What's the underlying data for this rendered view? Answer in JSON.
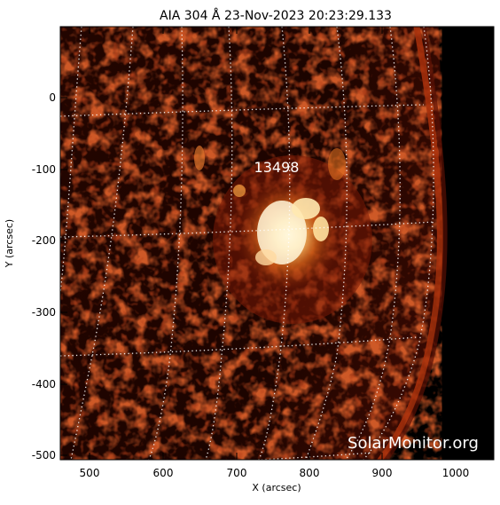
{
  "title": "AIA 304 Å 23-Nov-2023 20:23:29.133",
  "x_axis": {
    "label": "X (arcsec)",
    "ticks": [
      "500",
      "600",
      "700",
      "800",
      "900",
      "1000"
    ],
    "range": [
      450,
      1050
    ]
  },
  "y_axis": {
    "label": "Y (arcsec)",
    "ticks": [
      "0",
      "-100",
      "-200",
      "-300",
      "-400",
      "-500"
    ],
    "range": [
      -510,
      95
    ]
  },
  "active_region_label": "13498",
  "watermark": "SolarMonitor.org",
  "colors": {
    "background": "#000000",
    "limb": "#8a1e08",
    "bright_core": "#fff3d0",
    "frame": "#000000",
    "grid": "#ffffff"
  }
}
